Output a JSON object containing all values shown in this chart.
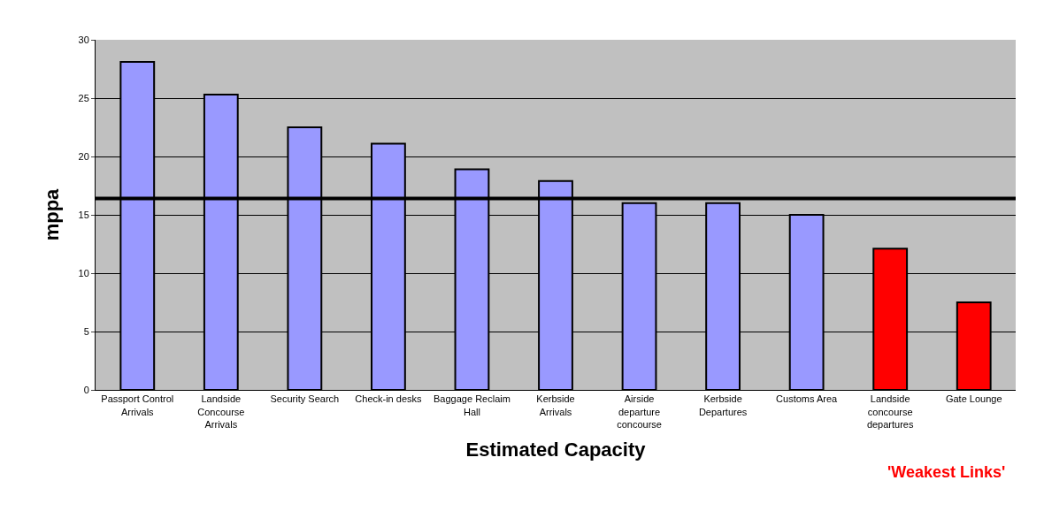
{
  "chart_data": {
    "type": "bar",
    "xlabel": "Estimated Capacity",
    "ylabel": "mppa",
    "categories": [
      "Passport Control Arrivals",
      "Landside Concourse Arrivals",
      "Security Search",
      "Check-in desks",
      "Baggage Reclaim Hall",
      "Kerbside Arrivals",
      "Airside departure concourse",
      "Kerbside Departures",
      "Customs Area",
      "Landside concourse departures",
      "Gate Lounge"
    ],
    "values": [
      28.1,
      25.3,
      22.5,
      21.1,
      18.9,
      17.9,
      16.0,
      16.0,
      15.0,
      12.1,
      7.5
    ],
    "colors": [
      "#9999ff",
      "#9999ff",
      "#9999ff",
      "#9999ff",
      "#9999ff",
      "#9999ff",
      "#9999ff",
      "#9999ff",
      "#9999ff",
      "#ff0000",
      "#ff0000"
    ],
    "ylim": [
      0,
      30
    ],
    "yticks": [
      0,
      5,
      10,
      15,
      20,
      25,
      30
    ],
    "grid": "y",
    "ref_lines": [
      {
        "axis": "y",
        "value": 16.4,
        "color": "#000000",
        "line_style": "solid"
      }
    ],
    "annotations": [
      "'Weakest Links'"
    ]
  }
}
